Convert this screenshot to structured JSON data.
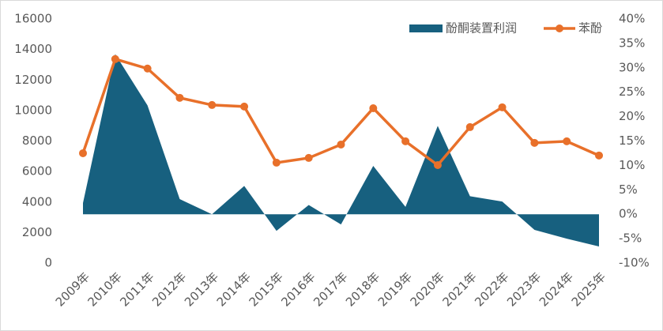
{
  "chart_data": {
    "type": "area+line",
    "categories": [
      "2009年",
      "2010年",
      "2011年",
      "2012年",
      "2013年",
      "2014年",
      "2015年",
      "2016年",
      "2017年",
      "2018年",
      "2019年",
      "2020年",
      "2021年",
      "2022年",
      "2023年",
      "2024年",
      "2025年"
    ],
    "series": [
      {
        "name": "酚酮装置利润",
        "color": "#17607f",
        "type": "area",
        "axis": "y2",
        "values": [
          2.3,
          32.8,
          22.3,
          3.1,
          0,
          5.8,
          -3.4,
          1.9,
          -2.1,
          9.9,
          1.5,
          18.1,
          3.7,
          2.6,
          -3.2,
          -5.0,
          -6.6
        ]
      },
      {
        "name": "苯酚",
        "color": "#e8702a",
        "type": "line",
        "axis": "y",
        "values": [
          7200,
          13370,
          12750,
          10830,
          10360,
          10260,
          6580,
          6890,
          7770,
          10150,
          7980,
          6420,
          8910,
          10210,
          7880,
          7980,
          7050
        ]
      }
    ],
    "ylim": [
      0,
      16000
    ],
    "yticks": [
      0,
      2000,
      4000,
      6000,
      8000,
      10000,
      12000,
      14000,
      16000
    ],
    "y2lim": [
      -10,
      40
    ],
    "y2ticks": [
      {
        "value": -10,
        "label": "-10%"
      },
      {
        "value": -5,
        "label": "-5%"
      },
      {
        "value": 0,
        "label": "0%"
      },
      {
        "value": 5,
        "label": "5%"
      },
      {
        "value": 10,
        "label": "10%"
      },
      {
        "value": 15,
        "label": "15%"
      },
      {
        "value": 20,
        "label": "20%"
      },
      {
        "value": 25,
        "label": "25%"
      },
      {
        "value": 30,
        "label": "30%"
      },
      {
        "value": 35,
        "label": "35%"
      },
      {
        "value": 40,
        "label": "40%"
      }
    ],
    "legend": "top-right",
    "grid": false
  }
}
